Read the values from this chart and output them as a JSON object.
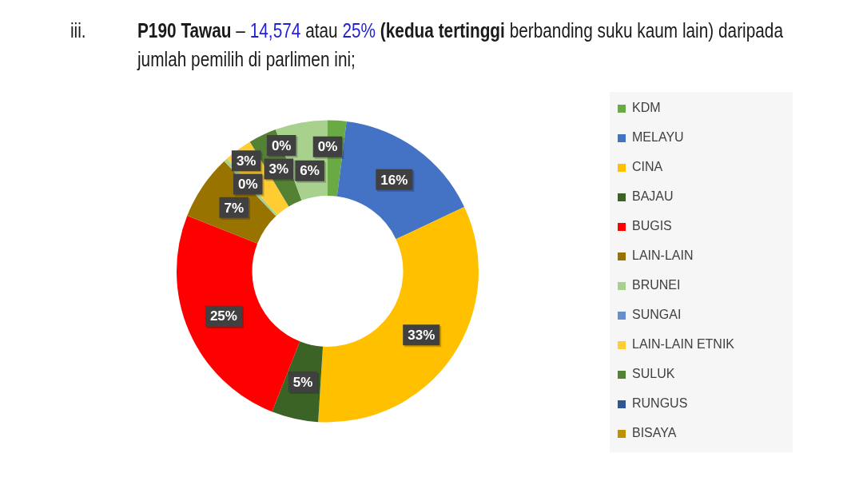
{
  "chart_data": {
    "type": "donut",
    "title": "iii. P190 Tawau – 14,574 atau 25% (kedua tertinggi berbanding suku kaum lain) daripada jumlah pemilih di parlimen ini;",
    "categories": [
      "KDM",
      "MELAYU",
      "CINA",
      "BAJAU",
      "BUGIS",
      "LAIN-LAIN",
      "BRUNEI",
      "SUNGAI",
      "LAIN-LAIN ETNIK",
      "SULUK",
      "RUNGUS",
      "BISAYA",
      null,
      null
    ],
    "values": [
      2,
      16,
      33,
      5,
      25,
      7,
      0.4,
      0,
      3,
      3,
      0,
      0,
      5.6,
      0
    ],
    "colors": [
      "#6aaa45",
      "#4472c4",
      "#ffc000",
      "#3b6326",
      "#ff0000",
      "#997300",
      "#a9d18e",
      "#698ed0",
      "#ffcd33",
      "#548235",
      "#2f5597",
      "#bf9000",
      "#a9d18e",
      "#8faadc"
    ],
    "value_labels": [
      null,
      "16%",
      "33%",
      "5%",
      "25%",
      "7%",
      "0%",
      null,
      "3%",
      "3%",
      "0%",
      null,
      "6%",
      "0%"
    ],
    "legend": "right"
  }
}
